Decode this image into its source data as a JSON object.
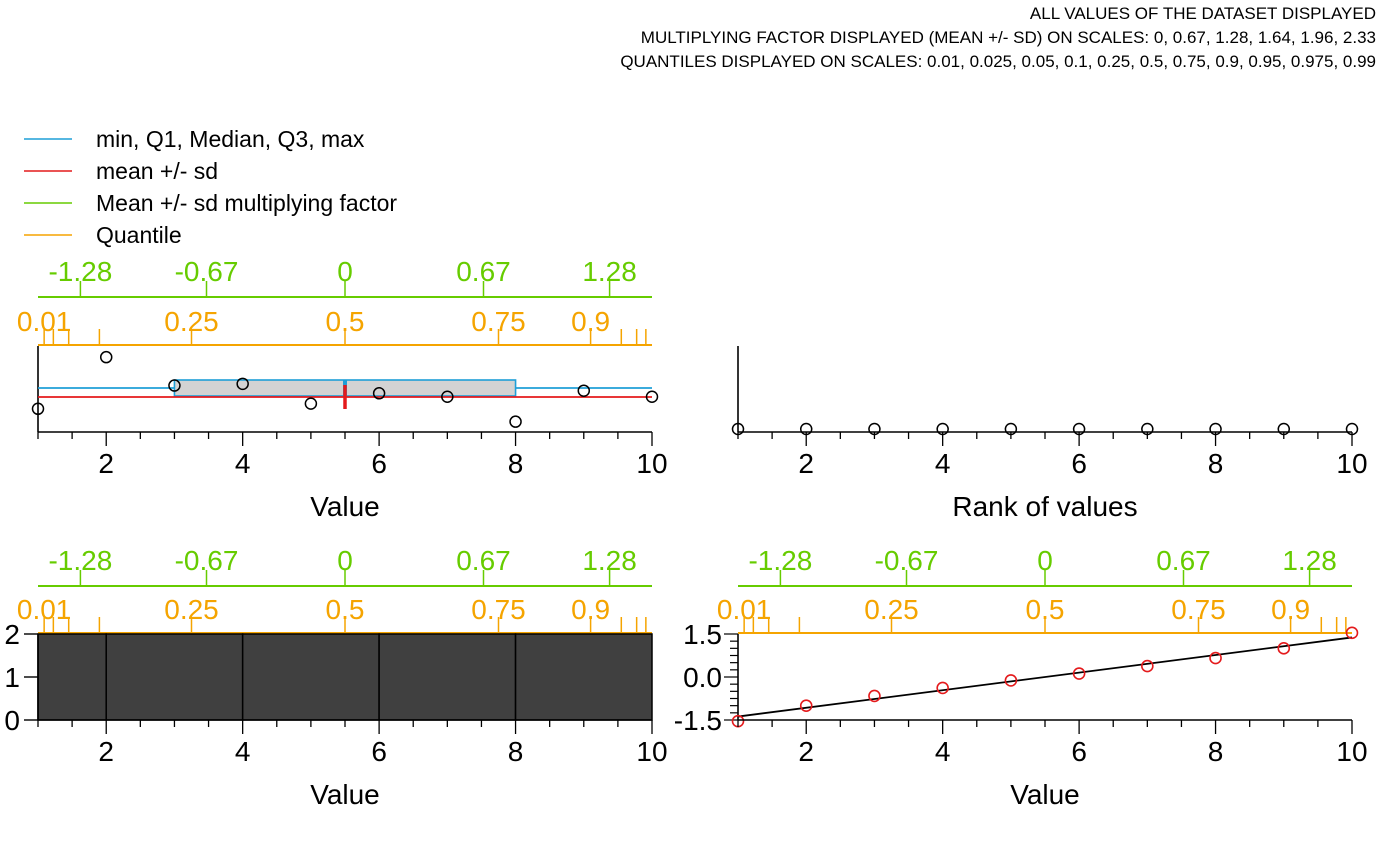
{
  "header": {
    "line1": "ALL VALUES OF THE DATASET DISPLAYED",
    "line2": "MULTIPLYING FACTOR DISPLAYED (MEAN +/- SD) ON SCALES: 0, 0.67, 1.28, 1.64, 1.96, 2.33",
    "line3": "QUANTILES DISPLAYED ON SCALES: 0.01, 0.025, 0.05, 0.1, 0.25, 0.5, 0.75, 0.9, 0.95, 0.975, 0.99"
  },
  "colors": {
    "box": "#1f9fd7",
    "mean": "#e41a1c",
    "factor": "#66cc00",
    "quantile": "#f5a400",
    "box_fill": "#d3d3d3",
    "bar_fill": "#404040",
    "axis": "#000000"
  },
  "chart_data": [
    {
      "type": "legend",
      "entries": [
        {
          "label": "min, Q1, Median, Q3, max",
          "color": "#1f9fd7"
        },
        {
          "label": "mean +/- sd",
          "color": "#e41a1c"
        },
        {
          "label": "Mean +/- sd multiplying factor",
          "color": "#66cc00"
        },
        {
          "label": "Quantile",
          "color": "#f5a400"
        }
      ]
    },
    {
      "type": "scatter",
      "panel": "stripchart-box",
      "xlabel": "Value",
      "xlim": [
        1,
        10
      ],
      "x_ticks": [
        "2",
        "4",
        "6",
        "8",
        "10"
      ],
      "points": [
        {
          "x": 1,
          "y": 0.27
        },
        {
          "x": 2,
          "y": 0.87
        },
        {
          "x": 3,
          "y": 0.54
        },
        {
          "x": 4,
          "y": 0.56
        },
        {
          "x": 5,
          "y": 0.33
        },
        {
          "x": 6,
          "y": 0.45
        },
        {
          "x": 7,
          "y": 0.41
        },
        {
          "x": 8,
          "y": 0.12
        },
        {
          "x": 9,
          "y": 0.48
        },
        {
          "x": 10,
          "y": 0.41
        }
      ],
      "box": {
        "min": 1,
        "q1": 3,
        "median": 5.5,
        "q3": 8,
        "max": 10
      },
      "mean_sd": {
        "mean": 5.5,
        "sd": 3.03
      },
      "factor_scale": {
        "labels": [
          "-1.28",
          "-0.67",
          "0",
          "0.67",
          "1.28"
        ],
        "values": [
          -1.28,
          -0.67,
          0,
          0.67,
          1.28
        ]
      },
      "quantile_scale": {
        "labels": [
          "0.01",
          "0.25",
          "0.5",
          "0.75",
          "0.9"
        ],
        "probs": [
          0.01,
          0.025,
          0.05,
          0.1,
          0.25,
          0.5,
          0.75,
          0.9,
          0.95,
          0.975,
          0.99
        ]
      }
    },
    {
      "type": "scatter",
      "panel": "rank",
      "xlabel": "Rank of values",
      "xlim": [
        1,
        10
      ],
      "x_ticks": [
        "2",
        "4",
        "6",
        "8",
        "10"
      ],
      "points": [
        {
          "x": 1,
          "y": 0
        },
        {
          "x": 2,
          "y": 0
        },
        {
          "x": 3,
          "y": 0
        },
        {
          "x": 4,
          "y": 0
        },
        {
          "x": 5,
          "y": 0
        },
        {
          "x": 6,
          "y": 0
        },
        {
          "x": 7,
          "y": 0
        },
        {
          "x": 8,
          "y": 0
        },
        {
          "x": 9,
          "y": 0
        },
        {
          "x": 10,
          "y": 0
        }
      ]
    },
    {
      "type": "bar",
      "panel": "histogram",
      "xlabel": "Value",
      "xlim": [
        1,
        10
      ],
      "ylim": [
        0,
        2
      ],
      "x_ticks": [
        "2",
        "4",
        "6",
        "8",
        "10"
      ],
      "y_ticks": [
        "0",
        "1",
        "2"
      ],
      "bins": [
        {
          "start": 1,
          "end": 2,
          "count": 2
        },
        {
          "start": 2,
          "end": 4,
          "count": 2
        },
        {
          "start": 4,
          "end": 6,
          "count": 2
        },
        {
          "start": 6,
          "end": 8,
          "count": 2
        },
        {
          "start": 8,
          "end": 10,
          "count": 2
        }
      ],
      "factor_scale": {
        "labels": [
          "-1.28",
          "-0.67",
          "0",
          "0.67",
          "1.28"
        ]
      },
      "quantile_scale": {
        "labels": [
          "0.01",
          "0.25",
          "0.5",
          "0.75",
          "0.9"
        ]
      }
    },
    {
      "type": "scatter",
      "panel": "qq",
      "xlabel": "Value",
      "xlim": [
        1,
        10
      ],
      "ylim": [
        -1.5,
        1.5
      ],
      "x_ticks": [
        "2",
        "4",
        "6",
        "8",
        "10"
      ],
      "y_ticks": [
        "-1.5",
        "0.0",
        "1.5"
      ],
      "points": [
        {
          "x": 1,
          "y": -1.54
        },
        {
          "x": 2,
          "y": -1.0
        },
        {
          "x": 3,
          "y": -0.66
        },
        {
          "x": 4,
          "y": -0.38
        },
        {
          "x": 5,
          "y": -0.12
        },
        {
          "x": 6,
          "y": 0.12
        },
        {
          "x": 7,
          "y": 0.38
        },
        {
          "x": 8,
          "y": 0.66
        },
        {
          "x": 9,
          "y": 1.0
        },
        {
          "x": 10,
          "y": 1.54
        }
      ],
      "line": {
        "x": [
          1,
          10
        ],
        "y": [
          -1.38,
          1.38
        ]
      },
      "factor_scale": {
        "labels": [
          "-1.28",
          "-0.67",
          "0",
          "0.67",
          "1.28"
        ]
      },
      "quantile_scale": {
        "labels": [
          "0.01",
          "0.25",
          "0.5",
          "0.75",
          "0.9"
        ]
      }
    }
  ]
}
